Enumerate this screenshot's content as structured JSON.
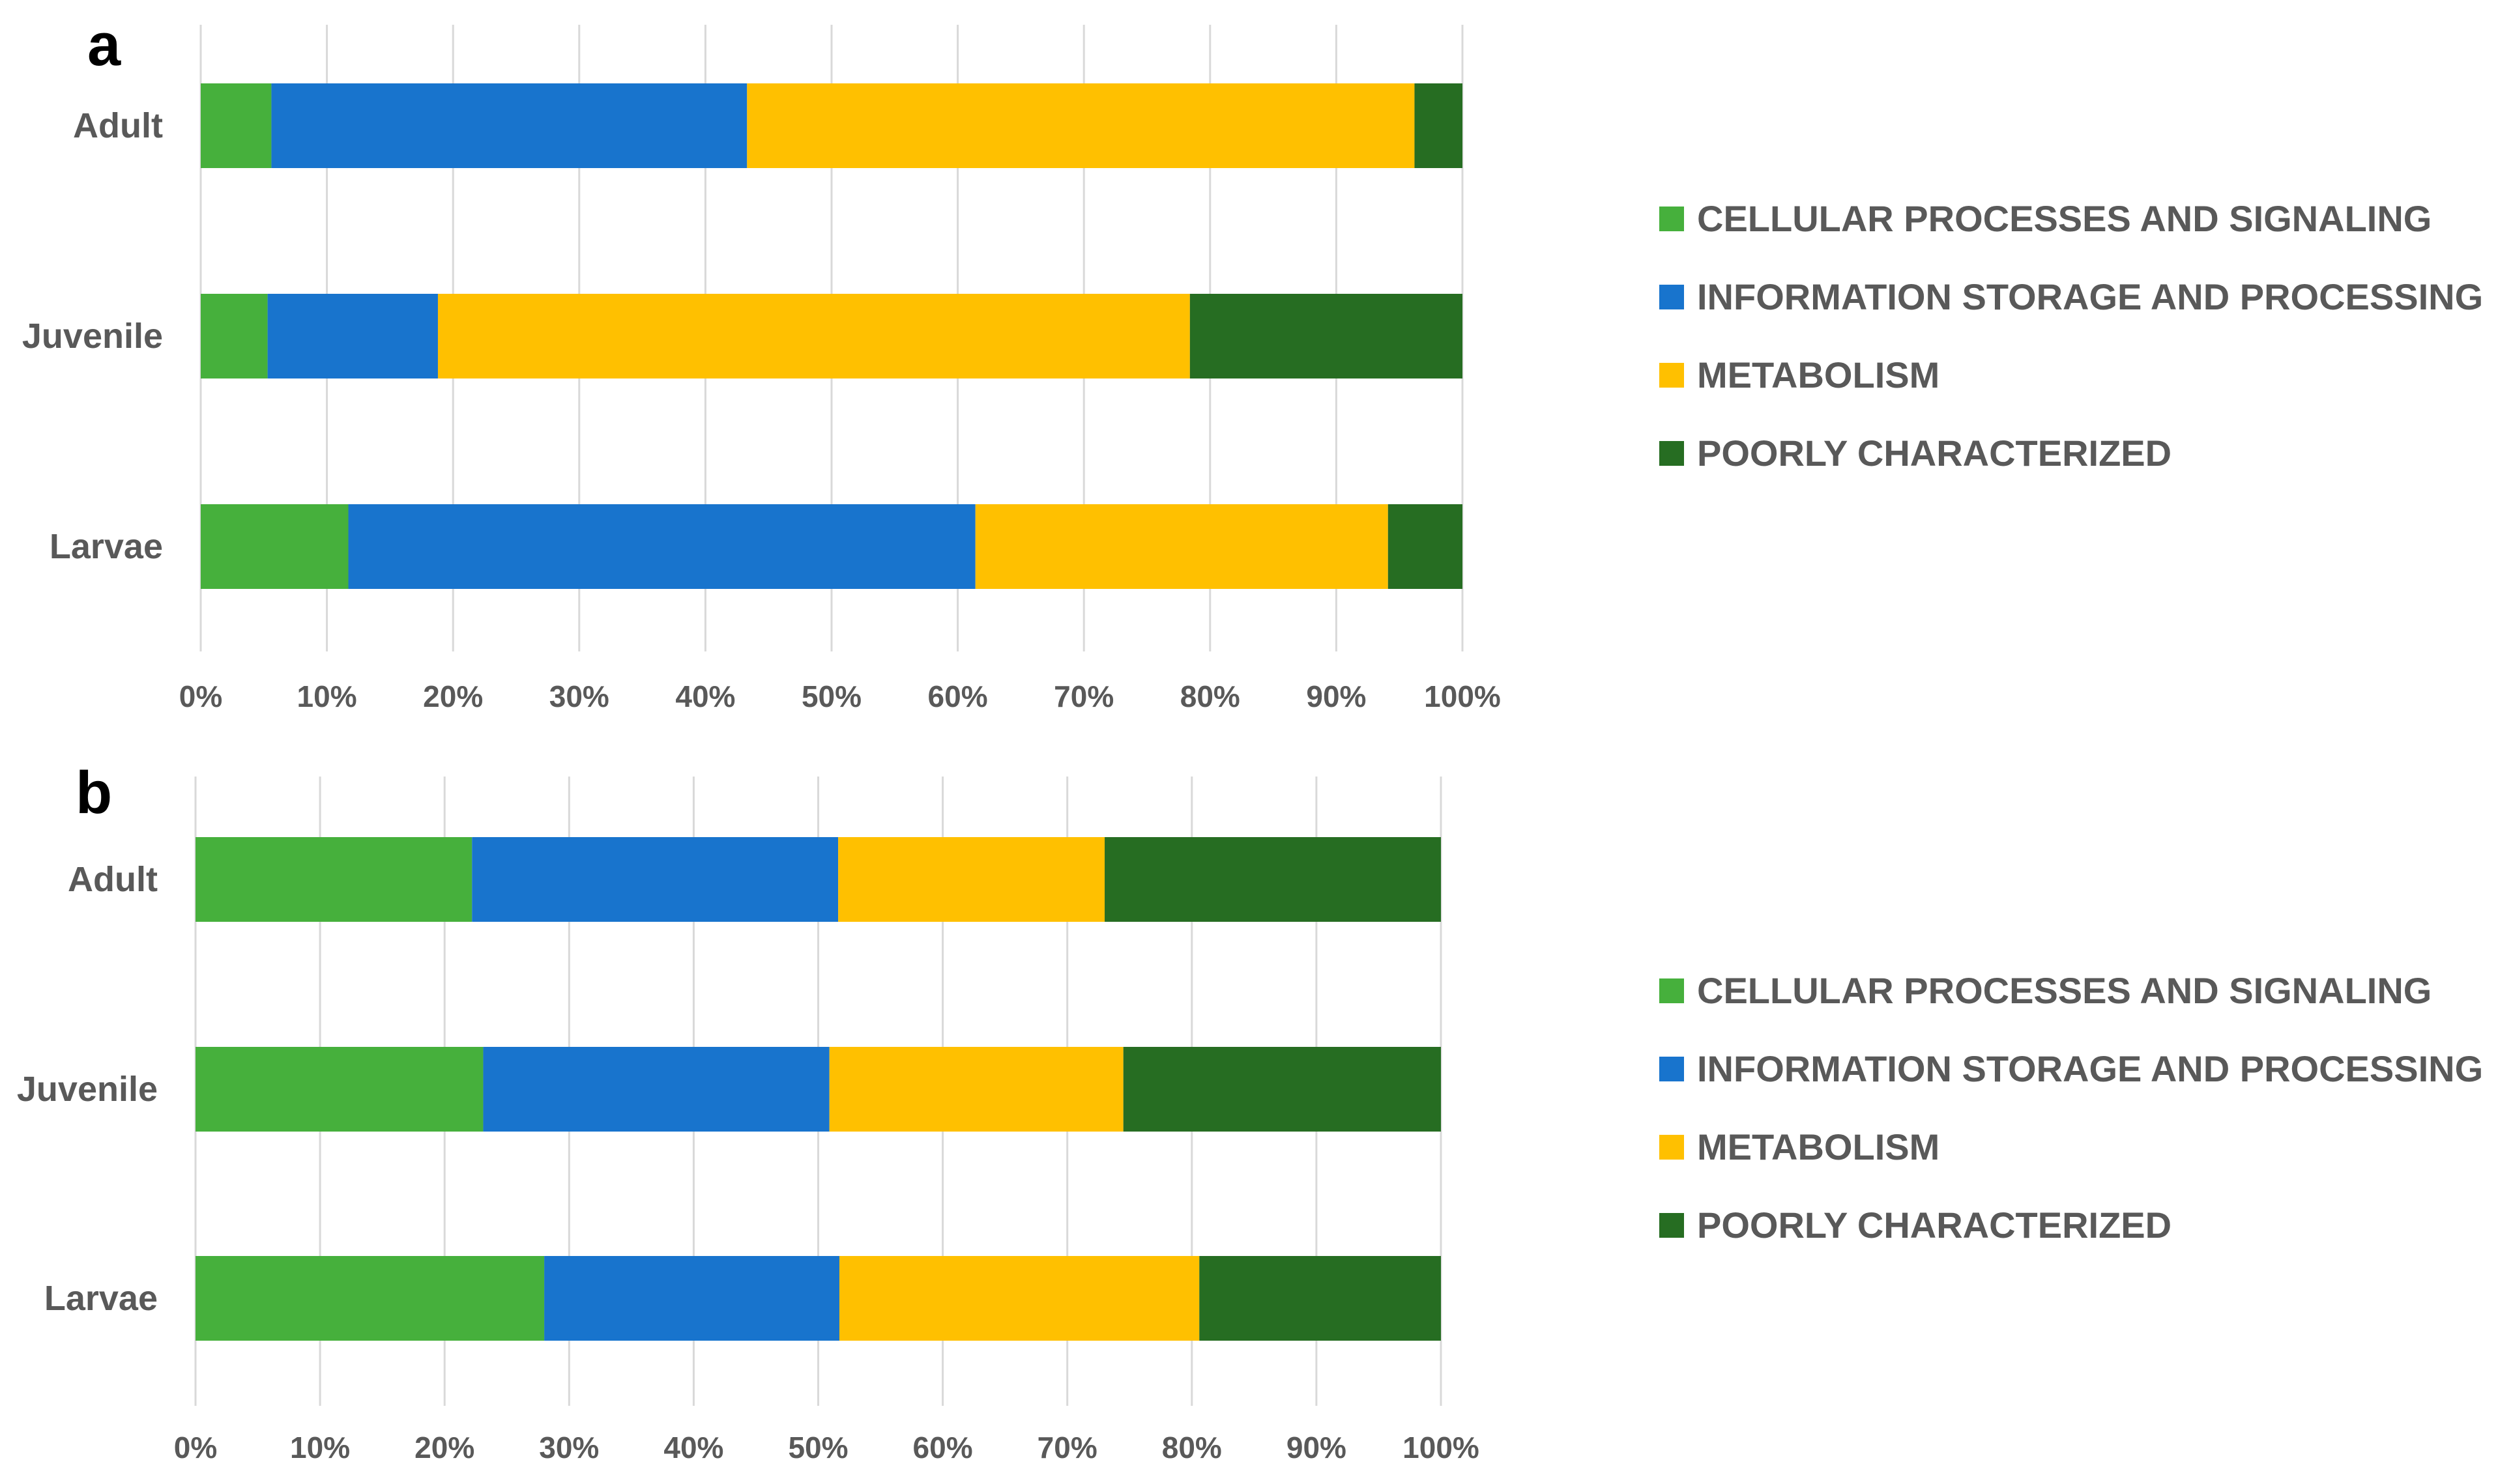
{
  "colors": {
    "cellular": "#46b03c",
    "information": "#1874cd",
    "metabolism": "#ffc000",
    "poorly": "#266d22",
    "grid": "#d9d9d9",
    "text": "#595959"
  },
  "chart_data": [
    {
      "panel": "a",
      "type": "bar",
      "orientation": "horizontal",
      "stacked": "percent",
      "categories": [
        "Adult",
        "Juvenile",
        "Larvae"
      ],
      "series": [
        {
          "name": "CELLULAR PROCESSES AND SIGNALING",
          "key": "cellular",
          "values": [
            5.6,
            5.3,
            11.7
          ]
        },
        {
          "name": "INFORMATION STORAGE AND PROCESSING",
          "key": "information",
          "values": [
            37.7,
            13.5,
            49.7
          ]
        },
        {
          "name": "METABOLISM",
          "key": "metabolism",
          "values": [
            52.9,
            59.6,
            32.7
          ]
        },
        {
          "name": "POORLY CHARACTERIZED",
          "key": "poorly",
          "values": [
            3.8,
            21.6,
            5.9
          ]
        }
      ],
      "xticks": [
        "0%",
        "10%",
        "20%",
        "30%",
        "40%",
        "50%",
        "60%",
        "70%",
        "80%",
        "90%",
        "100%"
      ],
      "xlim": [
        0,
        100
      ],
      "grid": true,
      "legend": "right"
    },
    {
      "panel": "b",
      "type": "bar",
      "orientation": "horizontal",
      "stacked": "percent",
      "categories": [
        "Adult",
        "Juvenile",
        "Larvae"
      ],
      "series": [
        {
          "name": "CELLULAR PROCESSES AND SIGNALING",
          "key": "cellular",
          "values": [
            22.2,
            23.1,
            28.0
          ]
        },
        {
          "name": "INFORMATION STORAGE AND PROCESSING",
          "key": "information",
          "values": [
            29.4,
            27.8,
            23.7
          ]
        },
        {
          "name": "METABOLISM",
          "key": "metabolism",
          "values": [
            21.4,
            23.6,
            28.9
          ]
        },
        {
          "name": "POORLY CHARACTERIZED",
          "key": "poorly",
          "values": [
            27.0,
            25.5,
            19.4
          ]
        }
      ],
      "xticks": [
        "0%",
        "10%",
        "20%",
        "30%",
        "40%",
        "50%",
        "60%",
        "70%",
        "80%",
        "90%",
        "100%"
      ],
      "xlim": [
        0,
        100
      ],
      "grid": true,
      "legend": "right"
    }
  ]
}
